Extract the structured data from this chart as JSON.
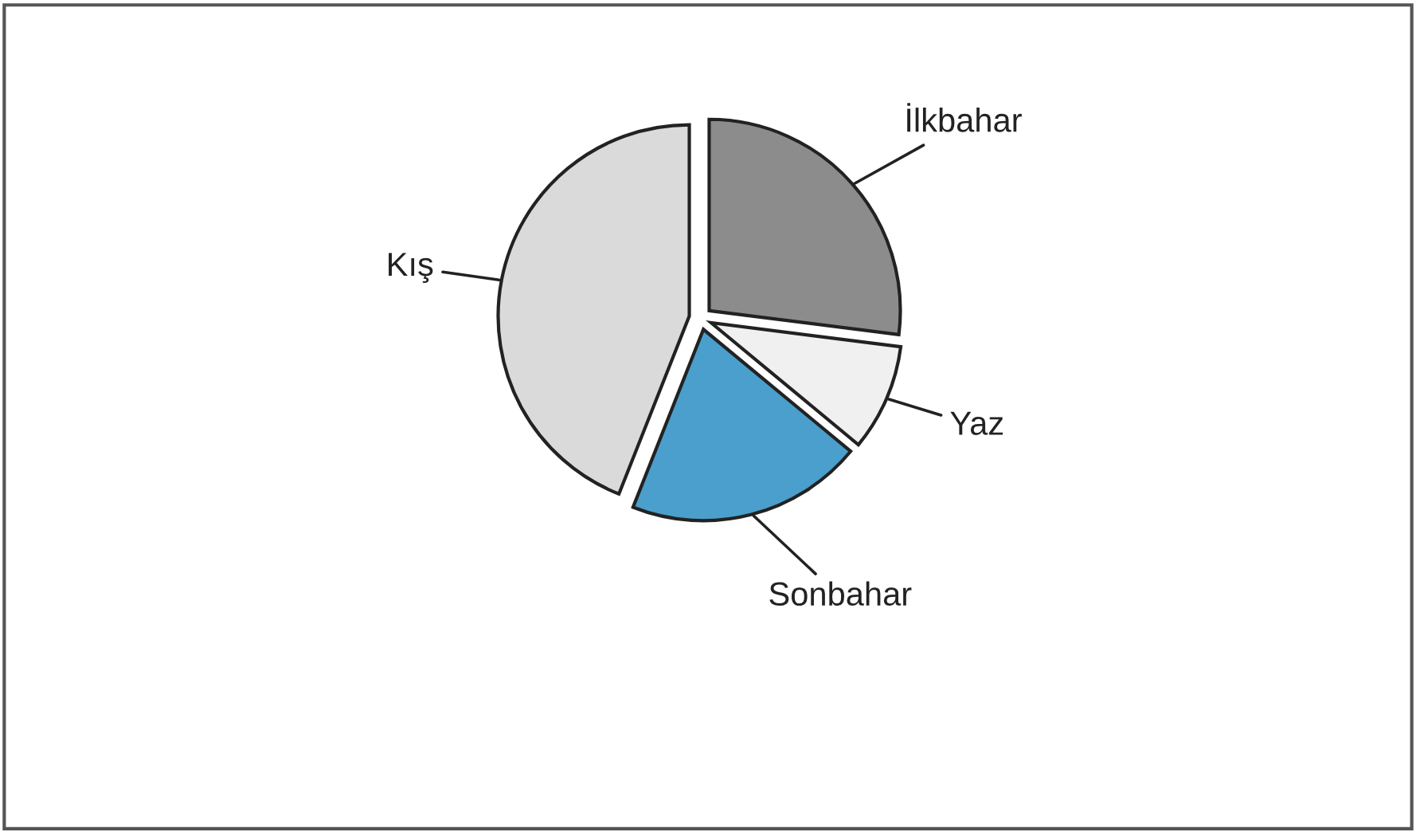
{
  "chart_data": {
    "type": "pie",
    "categories": [
      "İlkbahar",
      "Yaz",
      "Sonbahar",
      "Kış"
    ],
    "values": [
      27,
      9,
      20,
      44
    ],
    "colors": [
      "#8c8c8c",
      "#f0f0f0",
      "#4a9fcc",
      "#dadada"
    ]
  }
}
